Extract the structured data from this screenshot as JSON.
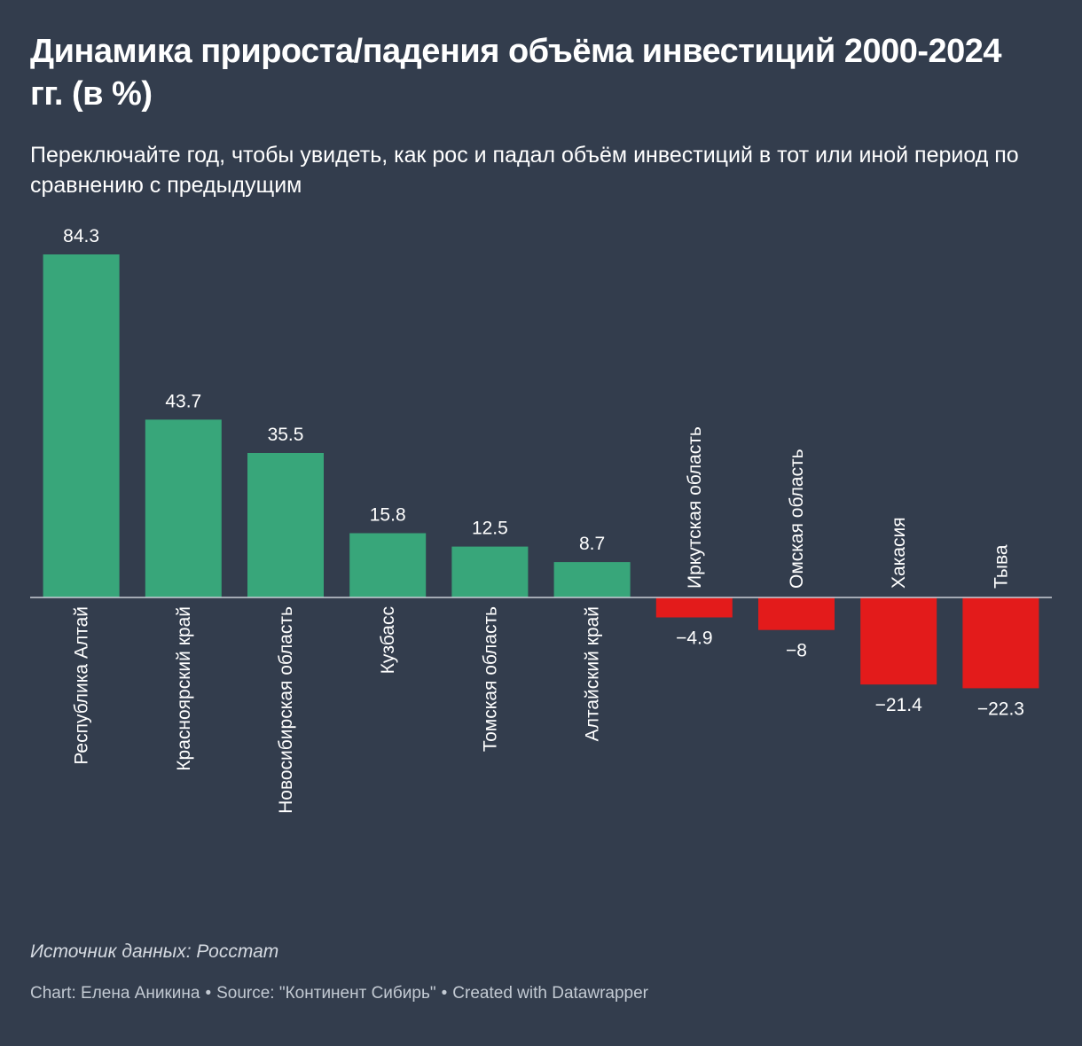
{
  "chart_data": {
    "type": "bar",
    "title": "Динамика прироста/падения объёма инвестиций 2000-2024 гг. (в %)",
    "subtitle": "Переключайте год, чтобы увидеть, как рос и падал объём инвестиций в тот или иной период по сравнению с предыдущим",
    "categories": [
      "Республика Алтай",
      "Красноярский край",
      "Новосибирская область",
      "Кузбасс",
      "Томская область",
      "Алтайский край",
      "Иркутская область",
      "Омская область",
      "Хакасия",
      "Тыва"
    ],
    "values": [
      84.3,
      43.7,
      35.5,
      15.8,
      12.5,
      8.7,
      -4.9,
      -8,
      -21.4,
      -22.3
    ],
    "value_labels": [
      "84.3",
      "43.7",
      "35.5",
      "15.8",
      "12.5",
      "8.7",
      "−4.9",
      "−8",
      "−21.4",
      "−22.3"
    ],
    "xlabel": "",
    "ylabel": "",
    "ylim": [
      -22.3,
      84.3
    ],
    "grid": false,
    "colors": {
      "positive": "#38a67a",
      "negative": "#e31b1b",
      "baseline": "#c9ced6"
    }
  },
  "notes": "Источник данных: Росстат",
  "footer": {
    "chart_by": "Chart: Елена Аникина",
    "source": "Source: \"Континент Сибирь\"",
    "created": "Created with Datawrapper",
    "separator": "•"
  }
}
